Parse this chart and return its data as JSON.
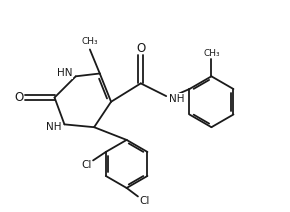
{
  "bg_color": "#ffffff",
  "line_color": "#1a1a1a",
  "line_width": 1.3,
  "font_size": 7.5,
  "xlim": [
    0,
    10
  ],
  "ylim": [
    0,
    7.5
  ]
}
